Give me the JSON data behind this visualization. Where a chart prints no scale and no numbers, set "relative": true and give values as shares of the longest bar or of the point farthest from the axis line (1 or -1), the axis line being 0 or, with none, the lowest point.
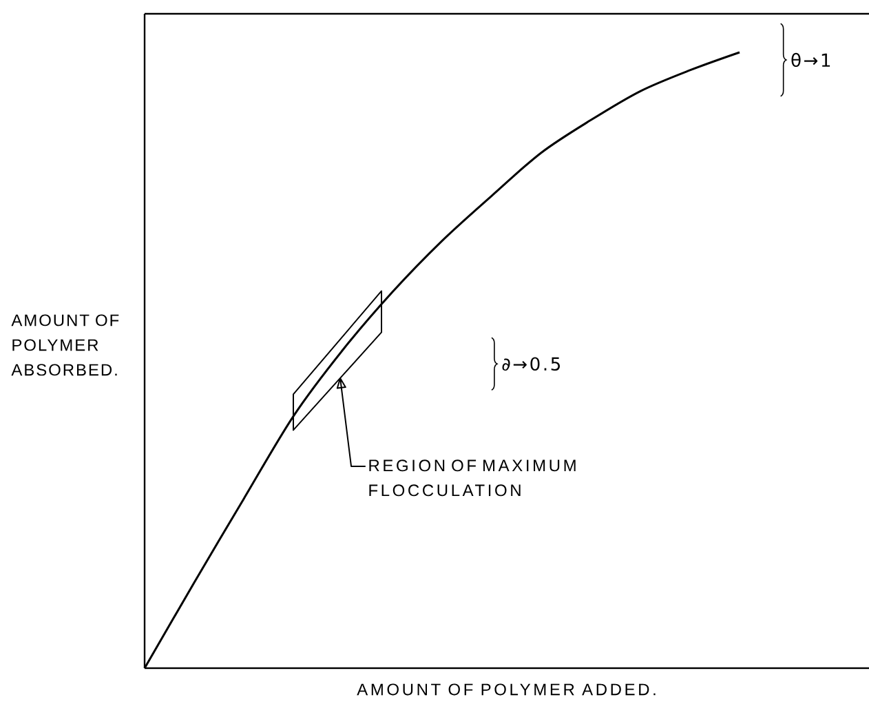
{
  "chart_data": {
    "type": "line",
    "relative": true,
    "xlabel": "AMOUNT OF POLYMER ADDED.",
    "ylabel": "AMOUNT OF POLYMER ABSORBED.",
    "categories": [
      null,
      null,
      null,
      null,
      null,
      null,
      null,
      null,
      null,
      null,
      null,
      null,
      null
    ],
    "series": [
      {
        "color": "#000000",
        "values": [
          0,
          0.139,
          0.275,
          0.409,
          0.517,
          0.611,
          0.694,
          0.767,
          0.837,
          0.89,
          0.937,
          0.971,
          1
        ]
      }
    ],
    "line_style": "solid",
    "annotations": [
      "θ→1",
      "∂→0.5",
      "REGION OF MAXIMUM FLOCCULATION"
    ]
  }
}
